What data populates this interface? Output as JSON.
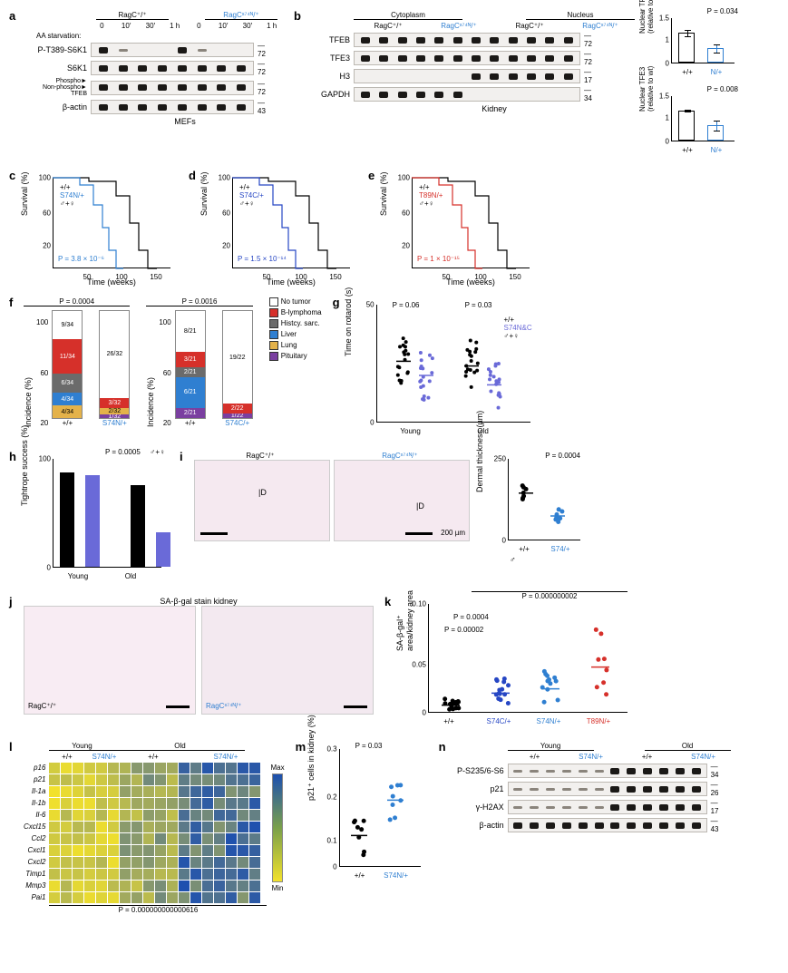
{
  "colors": {
    "wt": "#000000",
    "s74n": "#2f7fd1",
    "s74c": "#2646c4",
    "t89n": "#d6302a",
    "purple": "#6a6ad8",
    "tumor_none": "#ffffff",
    "tumor_blymph": "#d6302a",
    "tumor_hist": "#6b6b6b",
    "tumor_liver": "#2f7fd1",
    "tumor_lung": "#e4b24a",
    "tumor_pituitary": "#7a3fa0",
    "heatmap_max": "#1c4fb0",
    "heatmap_min": "#f2e12c",
    "band_bg": "#f2f0ee"
  },
  "a": {
    "panel": "a",
    "groups": [
      "RagC⁺/⁺",
      "RagCˢ⁷⁴ᴺ/⁺"
    ],
    "timepoints": [
      "0",
      "10′",
      "30′",
      "1 h",
      "0",
      "10′",
      "30′",
      "1 h"
    ],
    "aa_label": "AA starvation:",
    "rows": [
      {
        "label": "P-T389-S6K1",
        "mw": "72",
        "bands": [
          "strong",
          "weak",
          "none",
          "none",
          "strong",
          "weak",
          "none",
          "none"
        ]
      },
      {
        "label": "S6K1",
        "mw": "72",
        "bands": [
          "strong",
          "strong",
          "strong",
          "strong",
          "strong",
          "strong",
          "strong",
          "strong"
        ]
      },
      {
        "label": "TFEB",
        "mw": "72",
        "bands": [
          "strong",
          "strong",
          "strong",
          "strong",
          "strong",
          "strong",
          "strong",
          "strong"
        ],
        "side": [
          "Phospho►",
          "Non-phospho►"
        ]
      },
      {
        "label": "β-actin",
        "mw": "43",
        "bands": [
          "strong",
          "strong",
          "strong",
          "strong",
          "strong",
          "strong",
          "strong",
          "strong"
        ]
      }
    ],
    "caption": "MEFs"
  },
  "b": {
    "panel": "b",
    "comps": [
      "Cytoplasm",
      "Nucleus"
    ],
    "groups": [
      "RagC⁺/⁺",
      "RagCˢ⁷⁴ᴺ/⁺",
      "RagC⁺/⁺",
      "RagCˢ⁷⁴ᴺ/⁺"
    ],
    "rows": [
      {
        "label": "TFEB",
        "mw": "72"
      },
      {
        "label": "TFE3",
        "mw": "72"
      },
      {
        "label": "H3",
        "mw": "17"
      },
      {
        "label": "GAPDH",
        "mw": "34"
      }
    ],
    "caption": "Kidney",
    "charts": [
      {
        "ylabel": "Nuclear TFEB\n(relative to wt)",
        "p": "P = 0.034",
        "wt": 1.0,
        "mut": 0.48,
        "wt_sem": 0.12,
        "mut_sem": 0.14
      },
      {
        "ylabel": "Nuclear TFE3\n(relative to wt)",
        "p": "P = 0.008",
        "wt": 1.0,
        "mut": 0.5,
        "wt_sem": 0.05,
        "mut_sem": 0.18
      }
    ],
    "xticks": [
      "+/+",
      "N/+"
    ]
  },
  "c": {
    "panel": "c",
    "ylabel": "Survival (%)",
    "xlabel": "Time (weeks)",
    "xmax": 150,
    "wt_label": "+/+",
    "mut_label": "S74N/+",
    "sex": "♂+♀",
    "p": "P = 3.8 × 10⁻⁶",
    "mut_color": "#2f7fd1"
  },
  "d": {
    "panel": "d",
    "ylabel": "Survival (%)",
    "xlabel": "Time (weeks)",
    "xmax": 150,
    "wt_label": "+/+",
    "mut_label": "S74C/+",
    "sex": "♂+♀",
    "p": "P = 1.5 × 10⁻¹⁴",
    "mut_color": "#2646c4"
  },
  "e": {
    "panel": "e",
    "ylabel": "Survival (%)",
    "xlabel": "Time (weeks)",
    "xmax": 150,
    "wt_label": "+/+",
    "mut_label": "T89N/+",
    "sex": "♂+♀",
    "p": "P = 1 × 10⁻¹⁵",
    "mut_color": "#d6302a"
  },
  "f": {
    "panel": "f",
    "left": {
      "p": "P = 0.0004",
      "ylabel": "Incidence (%)",
      "xticks": [
        "+/+",
        "S74N/+"
      ],
      "bars": [
        {
          "segments": [
            {
              "k": "lung",
              "v": 11.8,
              "t": "4/34"
            },
            {
              "k": "liver",
              "v": 11.8,
              "t": "4/34"
            },
            {
              "k": "hist",
              "v": 17.6,
              "t": "6/34"
            },
            {
              "k": "blymph",
              "v": 32.4,
              "t": "11/34"
            },
            {
              "k": "none",
              "v": 26.5,
              "t": "9/34"
            }
          ]
        },
        {
          "segments": [
            {
              "k": "pituitary",
              "v": 3.1,
              "t": "1/32"
            },
            {
              "k": "lung",
              "v": 6.3,
              "t": "2/32"
            },
            {
              "k": "blymph",
              "v": 9.4,
              "t": "3/32"
            },
            {
              "k": "none",
              "v": 81.3,
              "t": "26/32"
            }
          ]
        }
      ]
    },
    "right": {
      "p": "P = 0.0016",
      "ylabel": "Incidence (%)",
      "xticks": [
        "+/+",
        "S74C/+"
      ],
      "bars": [
        {
          "segments": [
            {
              "k": "pituitary",
              "v": 9.5,
              "t": "2/21"
            },
            {
              "k": "liver",
              "v": 28.6,
              "t": "6/21"
            },
            {
              "k": "hist",
              "v": 9.5,
              "t": "2/21"
            },
            {
              "k": "blymph",
              "v": 14.3,
              "t": "3/21"
            },
            {
              "k": "none",
              "v": 38.1,
              "t": "8/21"
            }
          ]
        },
        {
          "segments": [
            {
              "k": "pituitary",
              "v": 4.5,
              "t": "1/22"
            },
            {
              "k": "blymph",
              "v": 9.1,
              "t": "2/22"
            },
            {
              "k": "none",
              "v": 86.4,
              "t": "19/22"
            }
          ]
        }
      ]
    },
    "legend": [
      {
        "k": "none",
        "label": "No tumor"
      },
      {
        "k": "blymph",
        "label": "B-lymphoma"
      },
      {
        "k": "hist",
        "label": "Histcy. sarc."
      },
      {
        "k": "liver",
        "label": "Liver"
      },
      {
        "k": "lung",
        "label": "Lung"
      },
      {
        "k": "pituitary",
        "label": "Pituitary"
      }
    ]
  },
  "g": {
    "panel": "g",
    "ylabel": "Time on rotarod (s)",
    "groups": [
      "Young",
      "Old"
    ],
    "p_young": "P = 0.06",
    "p_old": "P = 0.03",
    "legend": [
      "+/+",
      "S74N&C"
    ],
    "sex": "♂+♀",
    "ymax": 50,
    "means": {
      "young_wt": 26,
      "young_mut": 20,
      "old_wt": 24,
      "old_mut": 16
    }
  },
  "h": {
    "panel": "h",
    "ylabel": "Tightrope success (%)",
    "groups": [
      "Young",
      "Old"
    ],
    "p": "P = 0.0005",
    "legend": [
      "+/+",
      "S/+"
    ],
    "sex": "♂+♀",
    "vals": {
      "young_wt": 95,
      "young_mut": 92,
      "old_wt": 82,
      "old_mut": 35
    }
  },
  "i": {
    "panel": "i",
    "groups": [
      "RagC⁺/⁺",
      "RagCˢ⁷⁴ᴺ/⁺"
    ],
    "marker": "D",
    "scale": "200 µm",
    "chart": {
      "ylabel": "Dermal thickness (µm)",
      "p": "P = 0.0004",
      "xticks": [
        "+/+",
        "S74/+"
      ],
      "sex": "♂",
      "ymax": 250,
      "means": {
        "wt": 145,
        "mut": 75
      }
    }
  },
  "j": {
    "panel": "j",
    "title": "SA-β-gal stain kidney",
    "groups": [
      "RagC⁺/⁺",
      "RagCˢ⁷⁴ᴺ/⁺"
    ]
  },
  "k": {
    "panel": "k",
    "ylabel": "SA-β-gal⁺\narea/kidney area",
    "ymax": 0.1,
    "xticks": [
      "+/+",
      "S74C/+",
      "S74N/+",
      "T89N/+"
    ],
    "p_all": "P = 0.000000002",
    "p_s74n": "P = 0.0004",
    "p_s74c": "P = 0.00002",
    "means": {
      "wt": 0.007,
      "s74c": 0.018,
      "s74n": 0.022,
      "t89n": 0.042
    }
  },
  "l": {
    "panel": "l",
    "groups": [
      "Young",
      "Old"
    ],
    "sub": [
      "+/+",
      "S74N/+",
      "+/+",
      "S74N/+"
    ],
    "genes": [
      "p16",
      "p21",
      "Il-1a",
      "Il-1b",
      "Il-6",
      "Cxcl15",
      "Ccl2",
      "Cxcl1",
      "Cxcl2",
      "Timp1",
      "Mmp3",
      "Pai1"
    ],
    "cols": 18,
    "p": "P = 0.000000000000616",
    "legend_max": "Max",
    "legend_min": "Min",
    "data_note": "heatmap values normalized per gene; old S74N/+ group highest"
  },
  "m": {
    "panel": "m",
    "ylabel": "p21⁺ cells in kidney (%)",
    "p": "P = 0.03",
    "xticks": [
      "+/+",
      "S74N/+"
    ],
    "ymax": 0.3,
    "means": {
      "wt": 0.08,
      "mut": 0.17
    }
  },
  "n": {
    "panel": "n",
    "groups": [
      "Young",
      "Old"
    ],
    "sub": [
      "+/+",
      "S74N/+",
      "+/+",
      "S74N/+"
    ],
    "rows": [
      {
        "label": "P-S235/6-S6",
        "mw": "34"
      },
      {
        "label": "p21",
        "mw": "26"
      },
      {
        "label": "γ-H2AX",
        "mw": "17"
      },
      {
        "label": "β-actin",
        "mw": "43"
      }
    ]
  }
}
